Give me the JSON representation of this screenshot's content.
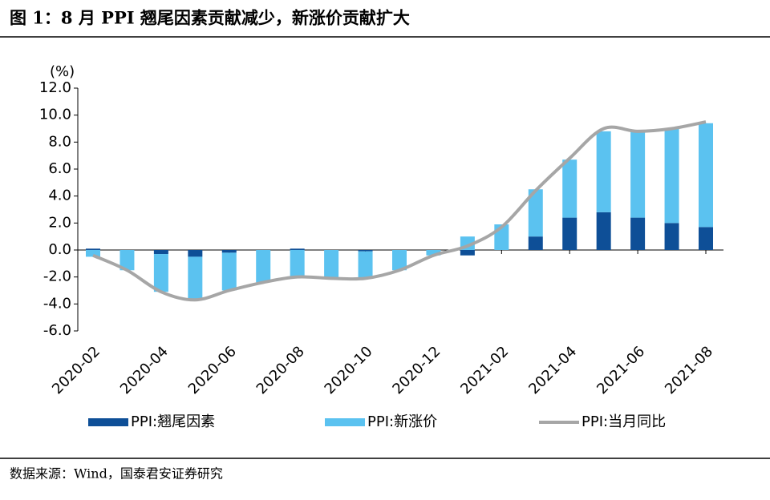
{
  "chart_data": {
    "type": "bar",
    "title": "图 1：8 月 PPI 翘尾因素贡献减少，新涨价贡献扩大",
    "unit": "(%)",
    "source": "数据来源：Wind，国泰君安证券研究",
    "categories": [
      "2020-02",
      null,
      "2020-04",
      null,
      "2020-06",
      null,
      "2020-08",
      null,
      "2020-10",
      null,
      "2020-12",
      null,
      "2021-02",
      null,
      "2021-04",
      null,
      "2021-06",
      null,
      "2021-08"
    ],
    "series": [
      {
        "name": "PPI:翘尾因素",
        "type": "bar",
        "color": "#0e4f97",
        "values": [
          0.1,
          0,
          -0.3,
          -0.5,
          -0.2,
          0,
          0.1,
          0,
          -0.1,
          0,
          0,
          -0.4,
          0,
          1.0,
          2.4,
          2.8,
          2.4,
          2.0,
          1.7
        ]
      },
      {
        "name": "PPI:新涨价",
        "type": "bar",
        "color": "#5bc2f0",
        "values": [
          -0.5,
          -1.5,
          -2.8,
          -3.2,
          -2.8,
          -2.4,
          -2.1,
          -2.1,
          -2.0,
          -1.5,
          -0.4,
          1.0,
          1.9,
          3.5,
          4.3,
          6.0,
          6.4,
          7.0,
          7.7
        ]
      },
      {
        "name": "PPI:当月同比",
        "type": "line",
        "color": "#a6a6a6",
        "values": [
          -0.4,
          -1.5,
          -3.1,
          -3.7,
          -3.0,
          -2.4,
          -2.0,
          -2.1,
          -2.1,
          -1.5,
          -0.4,
          0.3,
          1.7,
          4.4,
          6.8,
          9.0,
          8.8,
          9.0,
          9.5
        ]
      }
    ],
    "ylim": [
      -6,
      12
    ],
    "yticks": [
      {
        "value": -6,
        "label": "-6.0"
      },
      {
        "value": -4,
        "label": "-4.0"
      },
      {
        "value": -2,
        "label": "-2.0"
      },
      {
        "value": 0,
        "label": "0.0"
      },
      {
        "value": 2,
        "label": "2.0"
      },
      {
        "value": 4,
        "label": "4.0"
      },
      {
        "value": 6,
        "label": "6.0"
      },
      {
        "value": 8,
        "label": "8.0"
      },
      {
        "value": 10,
        "label": "10.0"
      },
      {
        "value": 12,
        "label": "12.0"
      }
    ]
  }
}
